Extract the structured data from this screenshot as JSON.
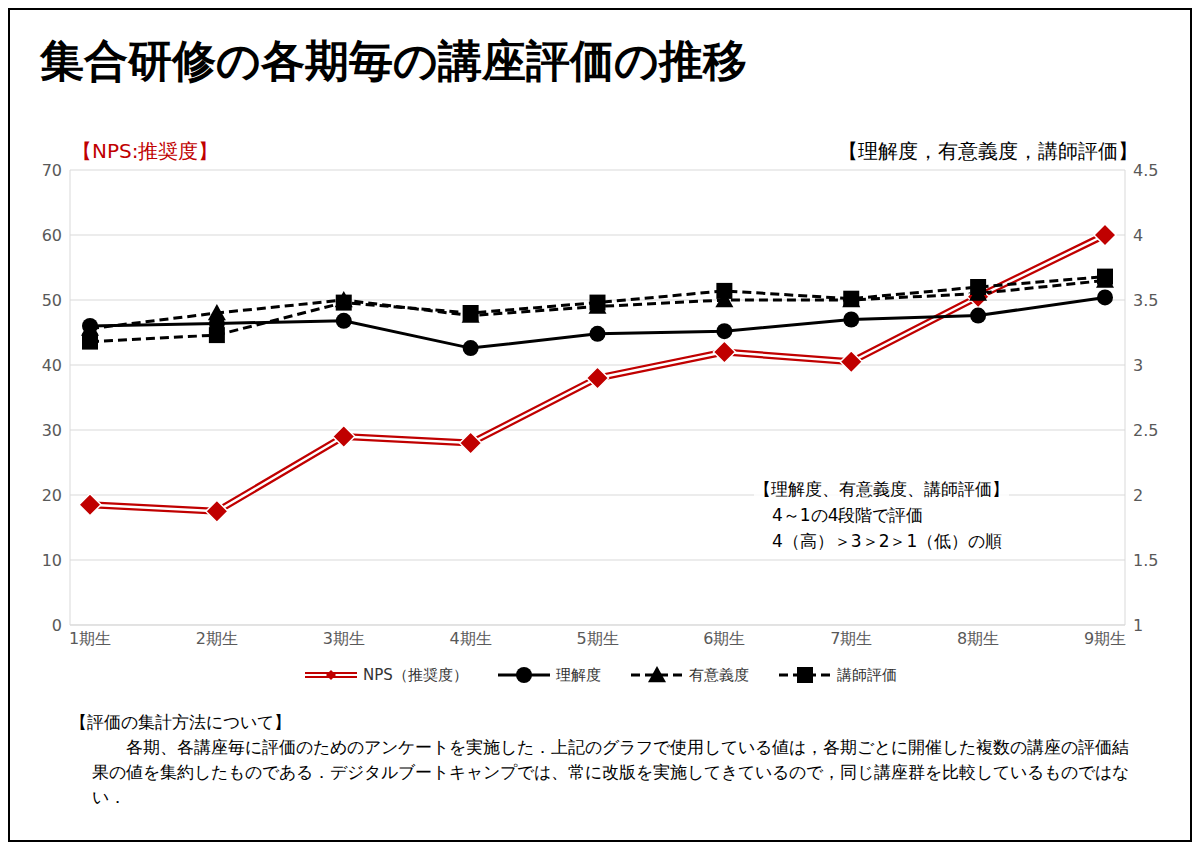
{
  "chart_data": {
    "type": "line",
    "title": "集合研修の各期毎の講座評価の推移",
    "y_label": "【NPS:推奨度】",
    "y2_label": "【理解度，有意義度，講師評価】",
    "categories": [
      "1期生",
      "2期生",
      "3期生",
      "4期生",
      "5期生",
      "6期生",
      "7期生",
      "8期生",
      "9期生"
    ],
    "series": [
      {
        "name": "NPS（推奨度）",
        "color": "#c00000",
        "marker": "diamond",
        "line_style": "double",
        "values": [
          18.5,
          17.5,
          29,
          28,
          38,
          42,
          40.5,
          50.5,
          60
        ]
      },
      {
        "name": "理解度",
        "color": "#000000",
        "marker": "circle",
        "line_style": "solid",
        "axis": "y2",
        "values": [
          3.3,
          3.32,
          3.34,
          3.13,
          3.24,
          3.26,
          3.35,
          3.38,
          3.52
        ]
      },
      {
        "name": "有意義度",
        "color": "#000000",
        "marker": "triangle",
        "line_style": "dashed",
        "axis": "y2",
        "values": [
          3.28,
          3.4,
          3.5,
          3.38,
          3.45,
          3.5,
          3.5,
          3.55,
          3.65
        ]
      },
      {
        "name": "講師評価",
        "color": "#000000",
        "marker": "square",
        "line_style": "dashed",
        "axis": "y2",
        "values": [
          3.18,
          3.23,
          3.48,
          3.4,
          3.48,
          3.57,
          3.51,
          3.6,
          3.68
        ]
      }
    ],
    "ylim": [
      0,
      70
    ],
    "yticks": [
      0,
      10,
      20,
      30,
      40,
      50,
      60,
      70
    ],
    "y2lim": [
      1,
      4.5
    ],
    "y2ticks": [
      1,
      1.5,
      2,
      2.5,
      3,
      3.5,
      4,
      4.5
    ],
    "grid": true,
    "legend": "bottom",
    "annotations": [
      "【理解度、有意義度、講師評価】",
      "4～1の4段階で評価",
      "4（高）＞3＞2＞1（低）の順"
    ],
    "footnote_title": "【評価の集計方法について】",
    "footnote": "各期、各講座毎に評価のためのアンケートを実施した．上記のグラフで使用している値は，各期ごとに開催した複数の講座の評価結果の値を集約したものである．デジタルブートキャンプでは、常に改版を実施してきているので，同じ講座群を比較しているものではない．"
  }
}
